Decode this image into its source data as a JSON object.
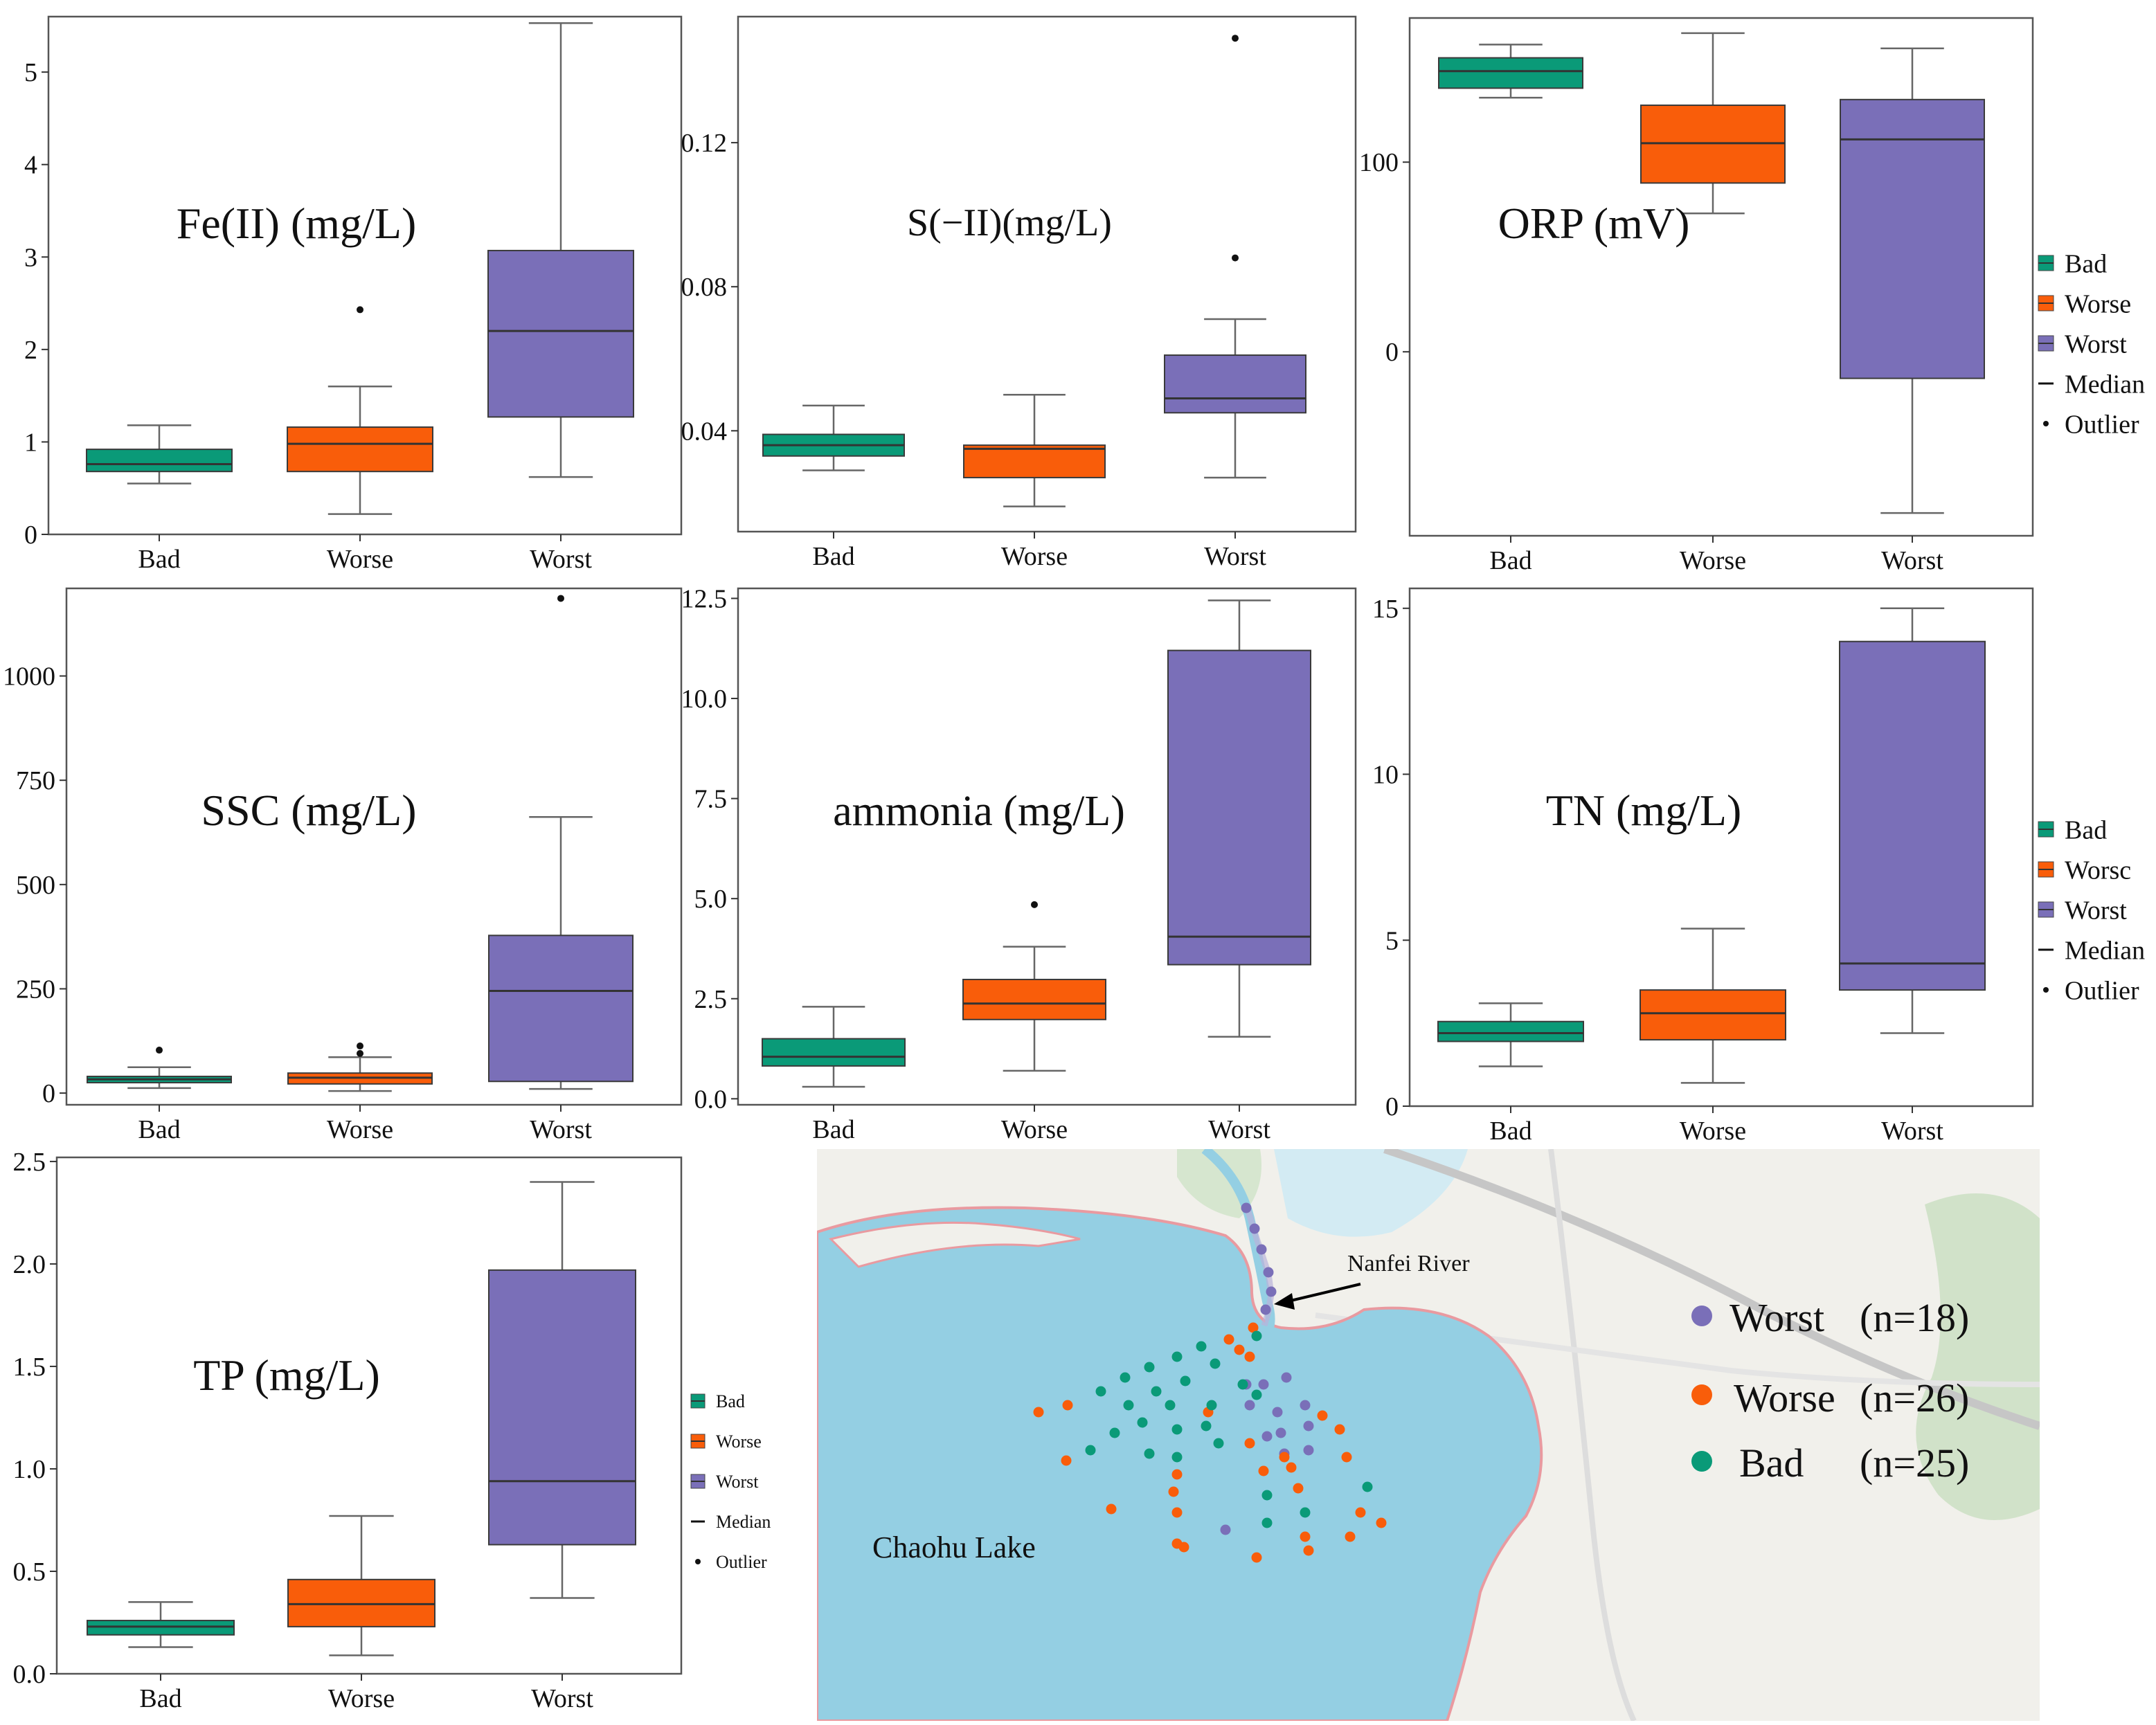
{
  "colors": {
    "bad": "#0a9a78",
    "worse": "#f95d0a",
    "worst": "#7a6fb8",
    "frame": "#555555",
    "whisker": "#666666",
    "lake": "#94cfe3",
    "land": "#f1f0eb"
  },
  "chart_data": [
    {
      "type": "box",
      "title": "Fe(II) (mg/L)",
      "categories": [
        "Bad",
        "Worse",
        "Worst"
      ],
      "ylim": [
        0,
        5.6
      ],
      "yticks": [
        0,
        1,
        2,
        3,
        4,
        5
      ],
      "ytick_labels": [
        "0",
        "1",
        "2",
        "3",
        "4",
        "5"
      ],
      "boxes": [
        {
          "name": "Bad",
          "min": 0.55,
          "q1": 0.68,
          "median": 0.76,
          "q3": 0.92,
          "max": 1.18,
          "outliers": []
        },
        {
          "name": "Worse",
          "min": 0.22,
          "q1": 0.68,
          "median": 0.98,
          "q3": 1.16,
          "max": 1.6,
          "outliers": [
            2.43
          ]
        },
        {
          "name": "Worst",
          "min": 0.62,
          "q1": 1.27,
          "median": 2.2,
          "q3": 3.07,
          "max": 5.53,
          "outliers": []
        }
      ]
    },
    {
      "type": "box",
      "title": "S(−II)(mg/L)",
      "categories": [
        "Bad",
        "Worse",
        "Worst"
      ],
      "ylim": [
        0.012,
        0.155
      ],
      "yticks": [
        0.04,
        0.08,
        0.12
      ],
      "ytick_labels": [
        "0.04",
        "0.08",
        "0.12"
      ],
      "boxes": [
        {
          "name": "Bad",
          "min": 0.029,
          "q1": 0.033,
          "median": 0.036,
          "q3": 0.039,
          "max": 0.047,
          "outliers": []
        },
        {
          "name": "Worse",
          "min": 0.019,
          "q1": 0.027,
          "median": 0.035,
          "q3": 0.036,
          "max": 0.05,
          "outliers": []
        },
        {
          "name": "Worst",
          "min": 0.027,
          "q1": 0.045,
          "median": 0.049,
          "q3": 0.061,
          "max": 0.071,
          "outliers": [
            0.088,
            0.149
          ]
        }
      ]
    },
    {
      "type": "box",
      "title": "ORP (mV)",
      "categories": [
        "Bad",
        "Worse",
        "Worst"
      ],
      "ylim": [
        -97,
        176
      ],
      "yticks": [
        0,
        100
      ],
      "ytick_labels": [
        "0",
        "100"
      ],
      "legend": [
        "Bad",
        "Worse",
        "Worst",
        "Median",
        "Outlier"
      ],
      "boxes": [
        {
          "name": "Bad",
          "min": 134,
          "q1": 139,
          "median": 148,
          "q3": 155,
          "max": 162,
          "outliers": []
        },
        {
          "name": "Worse",
          "min": 73,
          "q1": 89,
          "median": 110,
          "q3": 130,
          "max": 168,
          "outliers": []
        },
        {
          "name": "Worst",
          "min": -85,
          "q1": -14,
          "median": 112,
          "q3": 133,
          "max": 160,
          "outliers": []
        }
      ]
    },
    {
      "type": "box",
      "title": "SSC (mg/L)",
      "categories": [
        "Bad",
        "Worse",
        "Worst"
      ],
      "ylim": [
        -28,
        1210
      ],
      "yticks": [
        0,
        250,
        500,
        750,
        1000
      ],
      "ytick_labels": [
        "0",
        "250",
        "500",
        "750",
        "1000"
      ],
      "boxes": [
        {
          "name": "Bad",
          "min": 12,
          "q1": 25,
          "median": 33,
          "q3": 40,
          "max": 62,
          "outliers": [
            103
          ]
        },
        {
          "name": "Worse",
          "min": 5,
          "q1": 22,
          "median": 37,
          "q3": 48,
          "max": 86,
          "outliers": [
            95,
            113
          ]
        },
        {
          "name": "Worst",
          "min": 10,
          "q1": 28,
          "median": 245,
          "q3": 378,
          "max": 662,
          "outliers": [
            1186
          ]
        }
      ]
    },
    {
      "type": "box",
      "title": "ammonia (mg/L)",
      "categories": [
        "Bad",
        "Worse",
        "Worst"
      ],
      "ylim": [
        -0.15,
        12.75
      ],
      "yticks": [
        0,
        2.5,
        5,
        7.5,
        10,
        12.5
      ],
      "ytick_labels": [
        "0.0",
        "2.5",
        "5.0",
        "7.5",
        "10.0",
        "12.5"
      ],
      "boxes": [
        {
          "name": "Bad",
          "min": 0.3,
          "q1": 0.82,
          "median": 1.05,
          "q3": 1.5,
          "max": 2.3,
          "outliers": []
        },
        {
          "name": "Worse",
          "min": 0.7,
          "q1": 1.98,
          "median": 2.38,
          "q3": 2.98,
          "max": 3.8,
          "outliers": [
            4.85
          ]
        },
        {
          "name": "Worst",
          "min": 1.55,
          "q1": 3.35,
          "median": 4.05,
          "q3": 11.2,
          "max": 12.45,
          "outliers": []
        }
      ]
    },
    {
      "type": "box",
      "title": "TN  (mg/L)",
      "categories": [
        "Bad",
        "Worse",
        "Worst"
      ],
      "ylim": [
        0,
        15.6
      ],
      "yticks": [
        0,
        5,
        10,
        15
      ],
      "ytick_labels": [
        "0",
        "5",
        "10",
        "15"
      ],
      "legend": [
        "Bad",
        "Worsc",
        "Worst",
        "Median",
        "Outlier"
      ],
      "boxes": [
        {
          "name": "Bad",
          "min": 1.2,
          "q1": 1.95,
          "median": 2.2,
          "q3": 2.55,
          "max": 3.1,
          "outliers": []
        },
        {
          "name": "Worse",
          "min": 0.7,
          "q1": 2.0,
          "median": 2.8,
          "q3": 3.5,
          "max": 5.35,
          "outliers": []
        },
        {
          "name": "Worst",
          "min": 2.2,
          "q1": 3.5,
          "median": 4.3,
          "q3": 14.0,
          "max": 15.0,
          "outliers": []
        }
      ]
    },
    {
      "type": "box",
      "title": "TP (mg/L)",
      "categories": [
        "Bad",
        "Worse",
        "Worst"
      ],
      "ylim": [
        0,
        2.52
      ],
      "yticks": [
        0,
        0.5,
        1,
        1.5,
        2,
        2.5
      ],
      "ytick_labels": [
        "0.0",
        "0.5",
        "1.0",
        "1.5",
        "2.0",
        "2.5"
      ],
      "legend": [
        "Bad",
        "Worse",
        "Worst",
        "Median",
        "Outlier"
      ],
      "boxes": [
        {
          "name": "Bad",
          "min": 0.13,
          "q1": 0.19,
          "median": 0.23,
          "q3": 0.26,
          "max": 0.35,
          "outliers": []
        },
        {
          "name": "Worse",
          "min": 0.09,
          "q1": 0.23,
          "median": 0.34,
          "q3": 0.46,
          "max": 0.77,
          "outliers": []
        },
        {
          "name": "Worst",
          "min": 0.37,
          "q1": 0.63,
          "median": 0.94,
          "q3": 1.97,
          "max": 2.4,
          "outliers": []
        }
      ]
    }
  ],
  "map": {
    "lake_label": "Chaohu Lake",
    "river_label": "Nanfei River",
    "legend": [
      {
        "class": "worst",
        "label": "Worst",
        "count": "(n=18)"
      },
      {
        "class": "worse",
        "label": "Worse",
        "count": "(n=26)"
      },
      {
        "class": "bad",
        "label": "Bad",
        "count": "(n=25)"
      }
    ]
  }
}
